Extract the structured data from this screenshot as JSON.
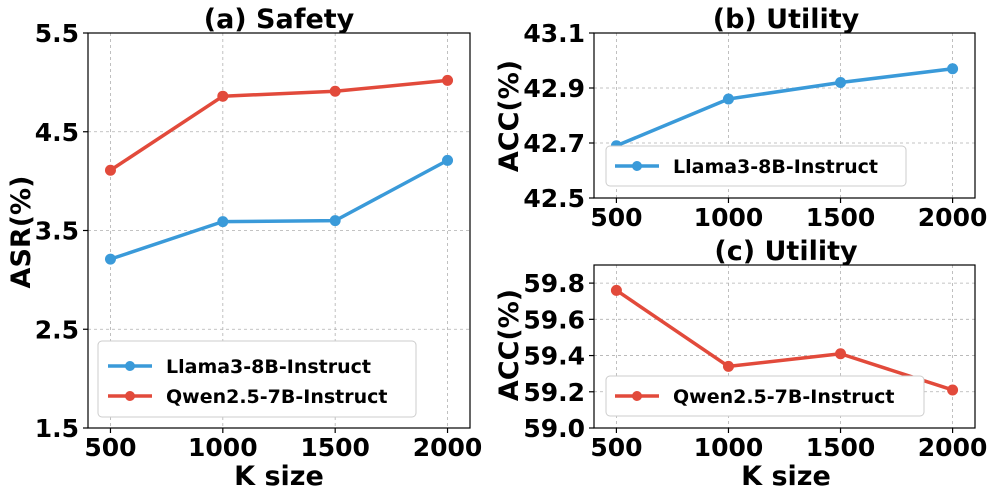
{
  "chart_data": [
    {
      "type": "line",
      "title": "(a) Safety",
      "xlabel": "K size",
      "ylabel": "ASR(%)",
      "x": [
        500,
        1000,
        1500,
        2000
      ],
      "xlim": [
        400,
        2100
      ],
      "ylim": [
        1.5,
        5.5
      ],
      "yticks": [
        "1.5",
        "2.5",
        "3.5",
        "4.5",
        "5.5"
      ],
      "xticks": [
        "500",
        "1000",
        "1500",
        "2000"
      ],
      "grid": true,
      "legend_position": "lower-right",
      "series": [
        {
          "name": "Llama3-8B-Instruct",
          "color": "#3a9ad9",
          "values": [
            3.21,
            3.59,
            3.6,
            4.21
          ]
        },
        {
          "name": "Qwen2.5-7B-Instruct",
          "color": "#e24a3b",
          "values": [
            4.11,
            4.86,
            4.91,
            5.02
          ]
        }
      ]
    },
    {
      "type": "line",
      "title": "(b) Utility",
      "xlabel": "",
      "ylabel": "ACC(%)",
      "x": [
        500,
        1000,
        1500,
        2000
      ],
      "xlim": [
        400,
        2100
      ],
      "ylim": [
        42.5,
        43.1
      ],
      "yticks": [
        "42.5",
        "42.7",
        "42.9",
        "43.1"
      ],
      "xticks": [
        "500",
        "1000",
        "1500",
        "2000"
      ],
      "grid": true,
      "legend_position": "lower-left",
      "series": [
        {
          "name": "Llama3-8B-Instruct",
          "color": "#3a9ad9",
          "values": [
            42.69,
            42.86,
            42.92,
            42.97
          ]
        }
      ]
    },
    {
      "type": "line",
      "title": "(c) Utility",
      "xlabel": "K size",
      "ylabel": "ACC(%)",
      "x": [
        500,
        1000,
        1500,
        2000
      ],
      "xlim": [
        400,
        2100
      ],
      "ylim": [
        59.0,
        59.9
      ],
      "yticks": [
        "59.0",
        "59.2",
        "59.4",
        "59.6",
        "59.8"
      ],
      "xticks": [
        "500",
        "1000",
        "1500",
        "2000"
      ],
      "grid": true,
      "legend_position": "lower-left",
      "series": [
        {
          "name": "Qwen2.5-7B-Instruct",
          "color": "#e24a3b",
          "values": [
            59.76,
            59.34,
            59.41,
            59.21
          ]
        }
      ]
    }
  ]
}
